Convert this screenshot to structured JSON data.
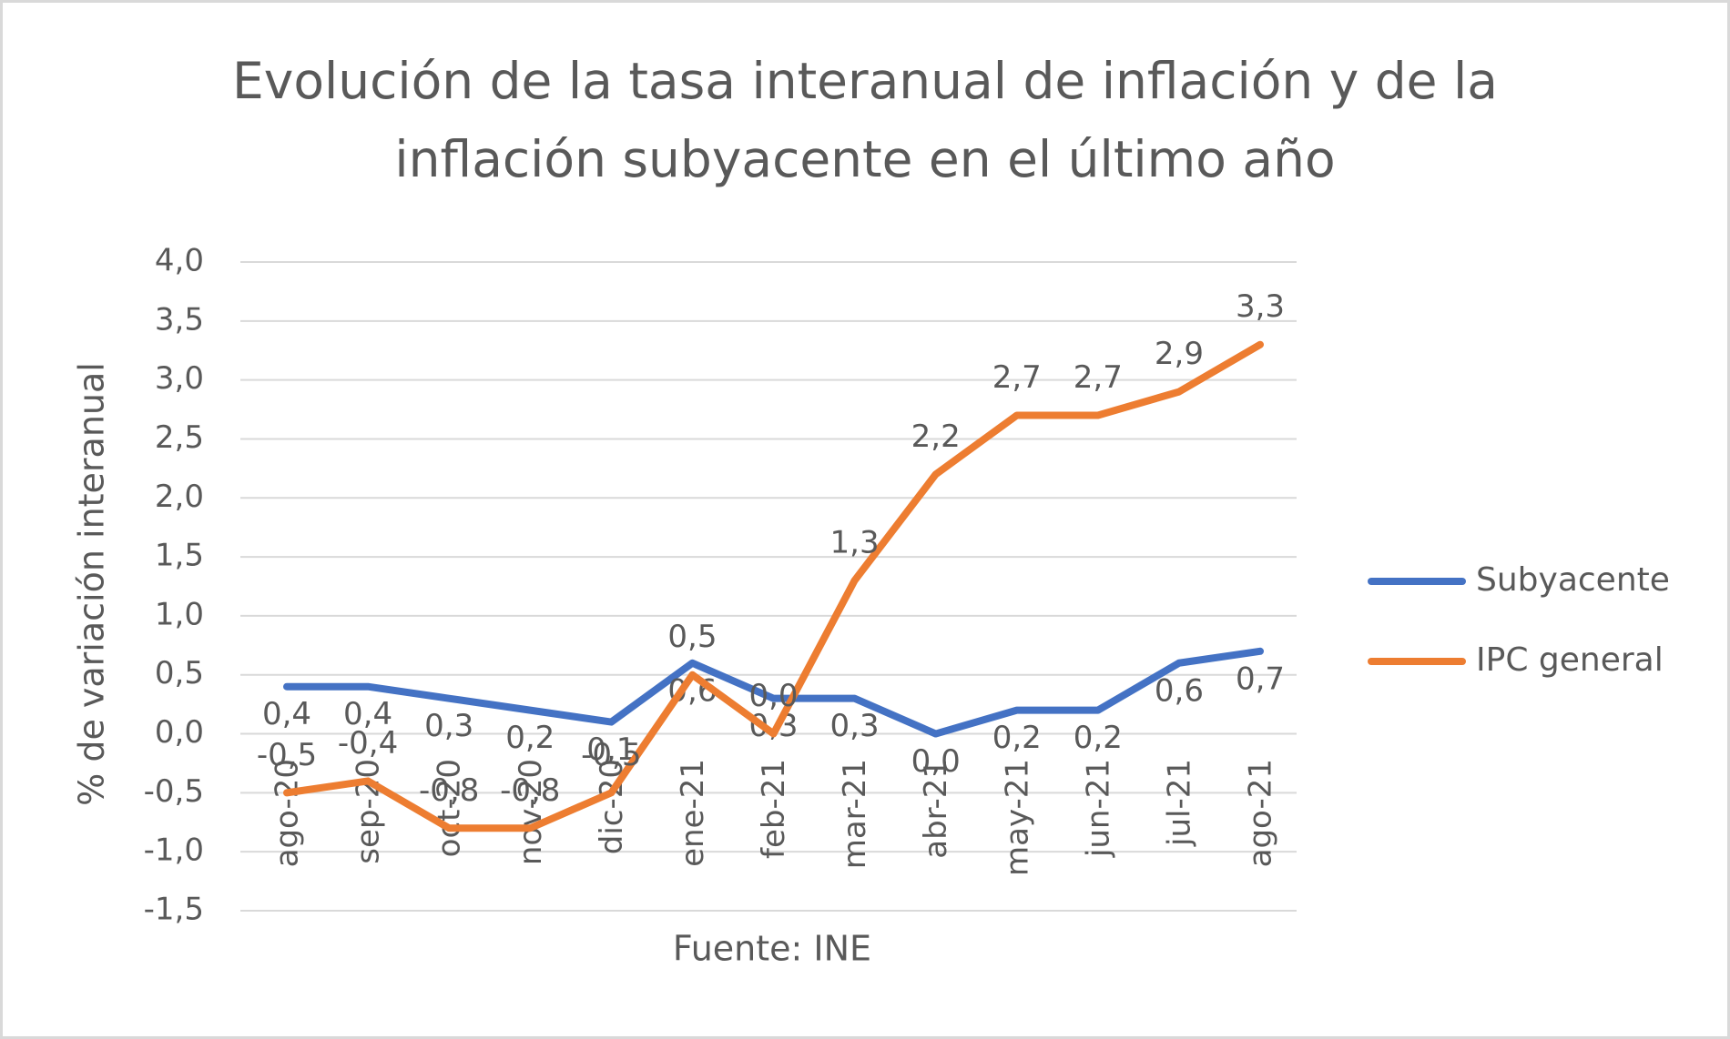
{
  "chart_data": {
    "type": "line",
    "title": [
      "Evolución de la tasa interanual de inflación y de la",
      "inflación subyacente en el último año"
    ],
    "y_label": "% de variación interanual",
    "x_label": "Fuente: INE",
    "categories": [
      "ago-20",
      "sep-20",
      "oct-20",
      "nov-20",
      "dic-20",
      "ene-21",
      "feb-21",
      "mar-21",
      "abr-21",
      "may-21",
      "jun-21",
      "jul-21",
      "ago-21"
    ],
    "series": [
      {
        "name": "Subyacente",
        "color": "#4472c4",
        "values": [
          0.4,
          0.4,
          0.3,
          0.2,
          0.1,
          0.6,
          0.3,
          0.3,
          0.0,
          0.2,
          0.2,
          0.6,
          0.7
        ],
        "value_labels": [
          "0,4",
          "0,4",
          "0,3",
          "0,2",
          "0,1",
          "0,6",
          "0,3",
          "0,3",
          "0,0",
          "0,2",
          "0,2",
          "0,6",
          "0,7"
        ]
      },
      {
        "name": "IPC general",
        "color": "#ed7d31",
        "values": [
          -0.5,
          -0.4,
          -0.8,
          -0.8,
          -0.5,
          0.5,
          0.0,
          1.3,
          2.2,
          2.7,
          2.7,
          2.9,
          3.3
        ],
        "value_labels": [
          "-0,5",
          "-0,4",
          "-0,8",
          "-0,8",
          "-0,5",
          "0,5",
          "0,0",
          "1,3",
          "2,2",
          "2,7",
          "2,7",
          "2,9",
          "3,3"
        ]
      }
    ],
    "ylim": [
      -1.5,
      4.0
    ],
    "yticks": [
      {
        "value": -1.5,
        "label": "-1,5"
      },
      {
        "value": -1.0,
        "label": "-1,0"
      },
      {
        "value": -0.5,
        "label": "-0,5"
      },
      {
        "value": 0,
        "label": "0,0"
      },
      {
        "value": 0.5,
        "label": "0,5"
      },
      {
        "value": 1.0,
        "label": "1,0"
      },
      {
        "value": 1.5,
        "label": "1,5"
      },
      {
        "value": 2.0,
        "label": "2,0"
      },
      {
        "value": 2.5,
        "label": "2,5"
      },
      {
        "value": 3.0,
        "label": "3,0"
      },
      {
        "value": 3.5,
        "label": "3,5"
      },
      {
        "value": 4.0,
        "label": "4,0"
      }
    ],
    "grid": true,
    "legend": "right"
  }
}
